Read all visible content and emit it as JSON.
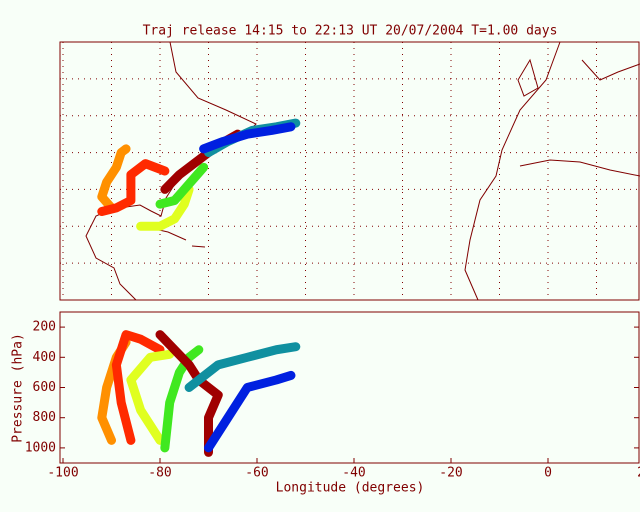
{
  "chart_data": [
    {
      "type": "map",
      "title": "Traj release 14:15 to 22:13 UT 20/07/2004    T=1.00 days",
      "xlim": [
        -100,
        20
      ],
      "ylim": [
        0,
        70
      ],
      "xticks": [
        -100,
        -90,
        -80,
        -70,
        -60,
        -50,
        -40,
        -30,
        -20,
        -10,
        0,
        10,
        20
      ],
      "yticks": [
        0,
        10,
        20,
        30,
        40,
        50,
        60,
        70
      ],
      "grid": true,
      "series": [
        {
          "color": "#ff9000",
          "x": [
            -90,
            -92,
            -91,
            -89,
            -88,
            -87
          ],
          "values": [
            25,
            28,
            32,
            36,
            40,
            41
          ]
        },
        {
          "color": "#ff2a00",
          "x": [
            -92,
            -89,
            -86,
            -86,
            -83,
            -79
          ],
          "values": [
            24,
            25,
            27,
            34,
            37,
            35
          ]
        },
        {
          "color": "#e0ff20",
          "x": [
            -84,
            -80,
            -77,
            -75,
            -74
          ],
          "values": [
            20,
            20,
            22,
            26,
            30
          ]
        },
        {
          "color": "#40e820",
          "x": [
            -80,
            -77,
            -75,
            -73,
            -71
          ],
          "values": [
            26,
            27,
            30,
            33,
            36
          ]
        },
        {
          "color": "#a00000",
          "x": [
            -79,
            -76,
            -72,
            -68,
            -64
          ],
          "values": [
            30,
            34,
            38,
            42,
            45
          ]
        },
        {
          "color": "#1090a0",
          "x": [
            -70,
            -66,
            -61,
            -56,
            -52
          ],
          "values": [
            40,
            43,
            46,
            47,
            48
          ]
        },
        {
          "color": "#0020e0",
          "x": [
            -71,
            -67,
            -62,
            -57,
            -53
          ],
          "values": [
            41,
            43,
            45,
            46,
            47
          ]
        }
      ]
    },
    {
      "type": "line",
      "xlabel": "Longitude  (degrees)",
      "ylabel": "Pressure  (hPa)",
      "xlim": [
        -100,
        20
      ],
      "ylim": [
        1100,
        100
      ],
      "inverted": true,
      "xticks": [
        -100,
        -80,
        -60,
        -40,
        -20,
        0,
        20
      ],
      "yticks": [
        200,
        400,
        600,
        800,
        1000
      ],
      "series": [
        {
          "color": "#ff9000",
          "x": [
            -90,
            -92,
            -91,
            -89,
            -88,
            -87
          ],
          "values": [
            950,
            800,
            600,
            400,
            350,
            300
          ]
        },
        {
          "color": "#ff2a00",
          "x": [
            -86,
            -88,
            -89,
            -87,
            -84,
            -80
          ],
          "values": [
            950,
            700,
            450,
            250,
            280,
            350
          ]
        },
        {
          "color": "#e0ff20",
          "x": [
            -80,
            -84,
            -86,
            -82,
            -78
          ],
          "values": [
            950,
            750,
            550,
            400,
            380
          ]
        },
        {
          "color": "#40e820",
          "x": [
            -79,
            -78,
            -76,
            -74,
            -72
          ],
          "values": [
            1000,
            700,
            500,
            400,
            350
          ]
        },
        {
          "color": "#a00000",
          "x": [
            -70,
            -70,
            -68,
            -72,
            -74,
            -77,
            -80
          ],
          "values": [
            1030,
            800,
            650,
            550,
            450,
            350,
            250
          ]
        },
        {
          "color": "#1090a0",
          "x": [
            -74,
            -68,
            -62,
            -56,
            -52
          ],
          "values": [
            600,
            450,
            400,
            350,
            330
          ]
        },
        {
          "color": "#0020e0",
          "x": [
            -70,
            -66,
            -62,
            -56,
            -53
          ],
          "values": [
            1000,
            800,
            600,
            550,
            520
          ]
        }
      ]
    }
  ]
}
